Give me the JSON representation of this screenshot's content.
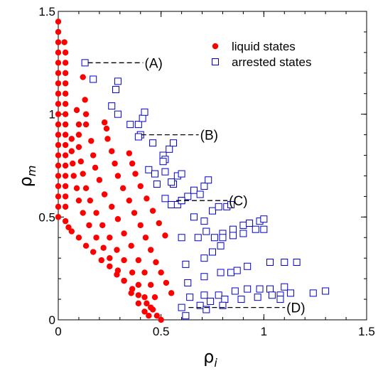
{
  "chart_data": {
    "type": "scatter",
    "xlabel": "ρ",
    "xlabel_sub": "i",
    "ylabel": "ρ",
    "ylabel_sub": "m",
    "xlim": [
      0,
      1.5
    ],
    "ylim": [
      0,
      1.5
    ],
    "x_ticks": [
      0,
      0.5,
      1,
      1.5
    ],
    "x_tick_labels": [
      "0",
      "0.5",
      "1",
      "1.5"
    ],
    "y_ticks": [
      0,
      0.5,
      1,
      1.5
    ],
    "y_tick_labels": [
      "0",
      "0.5",
      "1",
      "1.5"
    ],
    "grid": false,
    "legend_position": "top-right",
    "series": [
      {
        "name": "liquid states",
        "marker": "filled-circle",
        "color": "#ff0000",
        "points": [
          [
            0,
            1.45
          ],
          [
            0,
            1.4
          ],
          [
            0,
            1.35
          ],
          [
            0,
            1.3
          ],
          [
            0,
            1.25
          ],
          [
            0,
            1.2
          ],
          [
            0,
            1.15
          ],
          [
            0,
            1.1
          ],
          [
            0,
            1.05
          ],
          [
            0,
            1.0
          ],
          [
            0,
            0.95
          ],
          [
            0,
            0.9
          ],
          [
            0,
            0.85
          ],
          [
            0,
            0.8
          ],
          [
            0,
            0.75
          ],
          [
            0,
            0.7
          ],
          [
            0,
            0.65
          ],
          [
            0,
            0.6
          ],
          [
            0,
            0.55
          ],
          [
            0,
            0.5
          ],
          [
            0.035,
            0.48
          ],
          [
            0.05,
            0.45
          ],
          [
            0.065,
            0.43
          ],
          [
            0.1,
            0.4
          ],
          [
            0.135,
            0.36
          ],
          [
            0.17,
            0.33
          ],
          [
            0.21,
            0.29
          ],
          [
            0.25,
            0.26
          ],
          [
            0.285,
            0.22
          ],
          [
            0.32,
            0.19
          ],
          [
            0.36,
            0.15
          ],
          [
            0.39,
            0.12
          ],
          [
            0.43,
            0.08
          ],
          [
            0.46,
            0.05
          ],
          [
            0.48,
            0.02
          ],
          [
            0.5,
            0.0
          ],
          [
            0.03,
            1.35
          ],
          [
            0.035,
            1.3
          ],
          [
            0.035,
            1.25
          ],
          [
            0.035,
            1.2
          ],
          [
            0.035,
            1.15
          ],
          [
            0.035,
            1.1
          ],
          [
            0.035,
            1.05
          ],
          [
            0.035,
            1.0
          ],
          [
            0.035,
            0.95
          ],
          [
            0.035,
            0.9
          ],
          [
            0.035,
            0.85
          ],
          [
            0.035,
            0.8
          ],
          [
            0.035,
            0.75
          ],
          [
            0.035,
            0.7
          ],
          [
            0.035,
            0.65
          ],
          [
            0.035,
            0.6
          ],
          [
            0.035,
            0.55
          ],
          [
            0.065,
            0.88
          ],
          [
            0.065,
            0.82
          ],
          [
            0.07,
            0.76
          ],
          [
            0.075,
            0.7
          ],
          [
            0.09,
            0.64
          ],
          [
            0.1,
            0.58
          ],
          [
            0.12,
            0.52
          ],
          [
            0.15,
            0.46
          ],
          [
            0.185,
            0.4
          ],
          [
            0.22,
            0.35
          ],
          [
            0.25,
            0.3
          ],
          [
            0.29,
            0.24
          ],
          [
            0.32,
            0.19
          ],
          [
            0.355,
            0.13
          ],
          [
            0.39,
            0.08
          ],
          [
            0.42,
            0.04
          ],
          [
            0.44,
            0.02
          ],
          [
            0.09,
            1.02
          ],
          [
            0.1,
            0.95
          ],
          [
            0.1,
            0.9
          ],
          [
            0.1,
            0.84
          ],
          [
            0.11,
            0.77
          ],
          [
            0.12,
            0.71
          ],
          [
            0.135,
            0.64
          ],
          [
            0.155,
            0.58
          ],
          [
            0.185,
            0.52
          ],
          [
            0.215,
            0.46
          ],
          [
            0.25,
            0.4
          ],
          [
            0.285,
            0.34
          ],
          [
            0.32,
            0.29
          ],
          [
            0.36,
            0.23
          ],
          [
            0.39,
            0.17
          ],
          [
            0.42,
            0.11
          ],
          [
            0.45,
            0.06
          ],
          [
            0.12,
            1.18
          ],
          [
            0.13,
            1.07
          ],
          [
            0.135,
            1.0
          ],
          [
            0.135,
            0.95
          ],
          [
            0.16,
            0.87
          ],
          [
            0.17,
            0.8
          ],
          [
            0.18,
            0.74
          ],
          [
            0.2,
            0.68
          ],
          [
            0.225,
            0.61
          ],
          [
            0.26,
            0.55
          ],
          [
            0.29,
            0.49
          ],
          [
            0.32,
            0.42
          ],
          [
            0.355,
            0.36
          ],
          [
            0.39,
            0.29
          ],
          [
            0.42,
            0.23
          ],
          [
            0.45,
            0.17
          ],
          [
            0.47,
            0.11
          ],
          [
            0.225,
            0.96
          ],
          [
            0.235,
            0.93
          ],
          [
            0.24,
            0.88
          ],
          [
            0.26,
            0.82
          ],
          [
            0.275,
            0.76
          ],
          [
            0.29,
            0.7
          ],
          [
            0.315,
            0.64
          ],
          [
            0.345,
            0.58
          ],
          [
            0.37,
            0.52
          ],
          [
            0.4,
            0.46
          ],
          [
            0.425,
            0.4
          ],
          [
            0.45,
            0.34
          ],
          [
            0.475,
            0.28
          ],
          [
            0.5,
            0.23
          ],
          [
            0.525,
            0.18
          ],
          [
            0.55,
            0.13
          ],
          [
            0.345,
            0.81
          ],
          [
            0.36,
            0.76
          ],
          [
            0.375,
            0.71
          ],
          [
            0.4,
            0.65
          ],
          [
            0.43,
            0.59
          ],
          [
            0.46,
            0.53
          ],
          [
            0.49,
            0.47
          ],
          [
            0.52,
            0.41
          ]
        ]
      },
      {
        "name": "arrested states",
        "marker": "open-square",
        "color": "#0000cc",
        "points": [
          [
            0.13,
            1.25
          ],
          [
            0.17,
            1.17
          ],
          [
            0.28,
            1.12
          ],
          [
            0.29,
            1.16
          ],
          [
            0.26,
            1.04
          ],
          [
            0.29,
            1.0
          ],
          [
            0.35,
            0.95
          ],
          [
            0.39,
            0.95
          ],
          [
            0.4,
            0.9
          ],
          [
            0.41,
            0.98
          ],
          [
            0.42,
            1.01
          ],
          [
            0.39,
            0.89
          ],
          [
            0.46,
            0.86
          ],
          [
            0.51,
            0.8
          ],
          [
            0.52,
            0.78
          ],
          [
            0.54,
            0.83
          ],
          [
            0.56,
            0.86
          ],
          [
            0.51,
            0.77
          ],
          [
            0.44,
            0.73
          ],
          [
            0.47,
            0.71
          ],
          [
            0.52,
            0.72
          ],
          [
            0.56,
            0.66
          ],
          [
            0.58,
            0.7
          ],
          [
            0.6,
            0.71
          ],
          [
            0.55,
            0.67
          ],
          [
            0.48,
            0.66
          ],
          [
            0.52,
            0.59
          ],
          [
            0.55,
            0.56
          ],
          [
            0.58,
            0.56
          ],
          [
            0.6,
            0.58
          ],
          [
            0.63,
            0.6
          ],
          [
            0.66,
            0.63
          ],
          [
            0.69,
            0.61
          ],
          [
            0.71,
            0.65
          ],
          [
            0.73,
            0.68
          ],
          [
            0.6,
            0.58
          ],
          [
            0.66,
            0.5
          ],
          [
            0.71,
            0.48
          ],
          [
            0.75,
            0.53
          ],
          [
            0.78,
            0.55
          ],
          [
            0.82,
            0.55
          ],
          [
            0.84,
            0.56
          ],
          [
            0.6,
            0.4
          ],
          [
            0.68,
            0.4
          ],
          [
            0.72,
            0.43
          ],
          [
            0.76,
            0.4
          ],
          [
            0.8,
            0.42
          ],
          [
            0.85,
            0.44
          ],
          [
            0.9,
            0.46
          ],
          [
            0.93,
            0.47
          ],
          [
            0.98,
            0.48
          ],
          [
            1.0,
            0.49
          ],
          [
            0.62,
            0.27
          ],
          [
            0.71,
            0.3
          ],
          [
            0.75,
            0.33
          ],
          [
            0.79,
            0.36
          ],
          [
            0.8,
            0.4
          ],
          [
            0.85,
            0.41
          ],
          [
            0.9,
            0.42
          ],
          [
            0.96,
            0.44
          ],
          [
            1.0,
            0.44
          ],
          [
            0.63,
            0.18
          ],
          [
            0.71,
            0.21
          ],
          [
            0.79,
            0.23
          ],
          [
            0.84,
            0.23
          ],
          [
            0.87,
            0.24
          ],
          [
            0.92,
            0.26
          ],
          [
            1.03,
            0.28
          ],
          [
            1.1,
            0.28
          ],
          [
            1.16,
            0.28
          ],
          [
            0.64,
            0.11
          ],
          [
            0.71,
            0.12
          ],
          [
            0.78,
            0.12
          ],
          [
            0.86,
            0.14
          ],
          [
            0.92,
            0.15
          ],
          [
            0.98,
            0.15
          ],
          [
            1.03,
            0.15
          ],
          [
            1.1,
            0.16
          ],
          [
            0.6,
            0.06
          ],
          [
            0.69,
            0.07
          ],
          [
            0.74,
            0.09
          ],
          [
            0.81,
            0.1
          ],
          [
            0.89,
            0.1
          ],
          [
            0.97,
            0.11
          ],
          [
            1.04,
            0.12
          ],
          [
            1.08,
            0.12
          ],
          [
            1.13,
            0.13
          ],
          [
            1.24,
            0.13
          ],
          [
            1.3,
            0.14
          ],
          [
            0.62,
            0.02
          ],
          [
            0.72,
            0.05
          ],
          [
            0.8,
            0.07
          ],
          [
            1.08,
            0.1
          ]
        ]
      }
    ],
    "annotations": [
      {
        "text": "(A)",
        "x": 0.13,
        "y": 1.25,
        "label_x": 0.42
      },
      {
        "text": "(B)",
        "x": 0.39,
        "y": 0.9,
        "label_x": 0.69
      },
      {
        "text": "(C)",
        "x": 0.56,
        "y": 0.58,
        "label_x": 0.83
      },
      {
        "text": "(D)",
        "x": 0.62,
        "y": 0.06,
        "label_x": 1.11
      }
    ]
  }
}
